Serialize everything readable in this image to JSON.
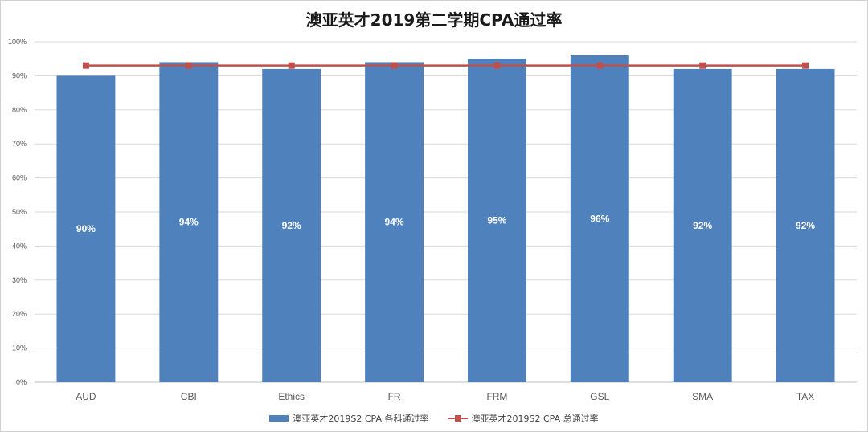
{
  "chart_data": {
    "type": "bar",
    "title": "澳亚英才2019第二学期CPA通过率",
    "categories": [
      "AUD",
      "CBI",
      "Ethics",
      "FR",
      "FRM",
      "GSL",
      "SMA",
      "TAX"
    ],
    "series": [
      {
        "name": "澳亚英才2019S2 CPA 各科通过率",
        "type": "bar",
        "values": [
          90,
          94,
          92,
          94,
          95,
          96,
          92,
          92
        ],
        "labels": [
          "90%",
          "94%",
          "92%",
          "94%",
          "95%",
          "96%",
          "92%",
          "92%"
        ],
        "color": "#4f81bd"
      },
      {
        "name": "澳亚英才2019S2 CPA 总通过率",
        "type": "line",
        "values": [
          93,
          93,
          93,
          93,
          93,
          93,
          93,
          93
        ],
        "color": "#c0504d"
      }
    ],
    "ylim": [
      0,
      100
    ],
    "yticks": [
      "0%",
      "10%",
      "20%",
      "30%",
      "40%",
      "50%",
      "60%",
      "70%",
      "80%",
      "90%",
      "100%"
    ],
    "grid": true,
    "legend_position": "bottom"
  }
}
